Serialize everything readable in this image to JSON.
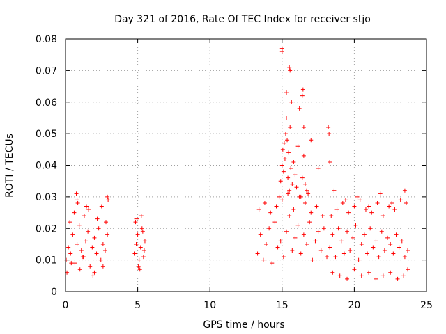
{
  "chart_data": {
    "type": "scatter",
    "title": "Day 321 of 2016, Rate Of TEC Index for receiver stjo",
    "xlabel": "GPS time / hours",
    "ylabel": "ROTI / TECUs",
    "xlim": [
      0,
      25
    ],
    "ylim": [
      0,
      0.08
    ],
    "x_ticks": [
      "0",
      "5",
      "10",
      "15",
      "20",
      "25"
    ],
    "y_ticks": [
      "0",
      "0.01",
      "0.02",
      "0.03",
      "0.04",
      "0.05",
      "0.06",
      "0.07",
      "0.08"
    ],
    "grid": true,
    "marker": "+",
    "color": "#ff0000",
    "series": [
      {
        "x": [
          0.05,
          0.2,
          0.35,
          0.5,
          0.65,
          0.8,
          0.95,
          1.1,
          1.25,
          1.4,
          1.55,
          1.7,
          1.85,
          2.0,
          2.15,
          2.3,
          2.45,
          2.6,
          2.75,
          2.9,
          0.1,
          0.3,
          0.6,
          0.85,
          1.0,
          1.3,
          1.6,
          1.9,
          2.2,
          2.5,
          2.8,
          0.75,
          0.8,
          1.45,
          2.9,
          2.95,
          0.4,
          1.2,
          2.0,
          2.6,
          4.8,
          4.9,
          5.0,
          5.1,
          5.2,
          5.3,
          5.4,
          5.5,
          4.85,
          5.05,
          5.25,
          5.45,
          5.15,
          5.35,
          4.95,
          13.3,
          13.5,
          13.7,
          13.9,
          14.1,
          14.3,
          14.5,
          14.7,
          14.9,
          15.1,
          15.3,
          15.5,
          15.7,
          15.9,
          16.1,
          16.3,
          16.5,
          16.7,
          16.9,
          17.1,
          17.3,
          17.5,
          17.7,
          17.9,
          18.1,
          13.4,
          13.8,
          14.2,
          14.6,
          15.0,
          15.4,
          15.8,
          16.2,
          16.6,
          17.0,
          17.4,
          17.8,
          14.8,
          14.9,
          15.0,
          15.05,
          15.1,
          15.15,
          15.2,
          15.25,
          15.3,
          15.35,
          15.4,
          15.45,
          15.5,
          15.55,
          15.6,
          15.65,
          15.7,
          15.8,
          15.9,
          16.0,
          16.1,
          16.2,
          16.3,
          16.4,
          16.5,
          16.6,
          16.7,
          16.8,
          15.0,
          15.0,
          15.3,
          15.5,
          15.55,
          16.4,
          16.45,
          16.5,
          17.0,
          17.5,
          18.2,
          18.25,
          18.3,
          18.3,
          18.5,
          18.7,
          18.9,
          19.1,
          19.3,
          19.5,
          19.7,
          19.9,
          20.1,
          20.3,
          20.5,
          20.7,
          20.9,
          21.1,
          21.3,
          21.5,
          21.7,
          21.9,
          22.1,
          22.3,
          22.5,
          22.7,
          22.9,
          23.1,
          23.3,
          23.5,
          23.7,
          18.4,
          18.8,
          19.2,
          19.6,
          20.0,
          20.4,
          20.8,
          21.2,
          21.6,
          22.0,
          22.4,
          22.8,
          23.2,
          23.6,
          18.5,
          19.0,
          19.5,
          20.0,
          20.5,
          21.0,
          21.5,
          22.0,
          22.5,
          23.0,
          23.4,
          23.7,
          18.6,
          19.4,
          20.2,
          21.0,
          21.8,
          22.6,
          23.5
        ],
        "y": [
          0.01,
          0.014,
          0.012,
          0.018,
          0.009,
          0.015,
          0.021,
          0.013,
          0.011,
          0.016,
          0.019,
          0.008,
          0.014,
          0.017,
          0.012,
          0.02,
          0.01,
          0.015,
          0.013,
          0.018,
          0.006,
          0.022,
          0.025,
          0.028,
          0.007,
          0.024,
          0.026,
          0.005,
          0.023,
          0.027,
          0.022,
          0.031,
          0.029,
          0.027,
          0.03,
          0.029,
          0.009,
          0.011,
          0.006,
          0.008,
          0.012,
          0.015,
          0.018,
          0.01,
          0.014,
          0.02,
          0.011,
          0.016,
          0.022,
          0.008,
          0.024,
          0.013,
          0.007,
          0.019,
          0.023,
          0.012,
          0.018,
          0.01,
          0.015,
          0.02,
          0.009,
          0.022,
          0.014,
          0.016,
          0.011,
          0.019,
          0.024,
          0.013,
          0.017,
          0.021,
          0.012,
          0.018,
          0.015,
          0.022,
          0.01,
          0.016,
          0.019,
          0.013,
          0.02,
          0.011,
          0.026,
          0.028,
          0.025,
          0.027,
          0.029,
          0.031,
          0.026,
          0.03,
          0.028,
          0.025,
          0.027,
          0.024,
          0.03,
          0.035,
          0.04,
          0.045,
          0.038,
          0.047,
          0.042,
          0.05,
          0.055,
          0.048,
          0.036,
          0.044,
          0.032,
          0.052,
          0.039,
          0.06,
          0.034,
          0.041,
          0.037,
          0.033,
          0.046,
          0.058,
          0.03,
          0.036,
          0.043,
          0.034,
          0.032,
          0.031,
          0.077,
          0.076,
          0.063,
          0.071,
          0.07,
          0.062,
          0.064,
          0.052,
          0.048,
          0.039,
          0.052,
          0.05,
          0.041,
          0.014,
          0.018,
          0.011,
          0.02,
          0.016,
          0.012,
          0.019,
          0.013,
          0.017,
          0.021,
          0.01,
          0.015,
          0.018,
          0.012,
          0.02,
          0.014,
          0.016,
          0.011,
          0.019,
          0.013,
          0.017,
          0.015,
          0.012,
          0.018,
          0.014,
          0.016,
          0.011,
          0.013,
          0.024,
          0.026,
          0.028,
          0.025,
          0.027,
          0.029,
          0.026,
          0.025,
          0.028,
          0.024,
          0.027,
          0.026,
          0.029,
          0.028,
          0.006,
          0.005,
          0.004,
          0.007,
          0.005,
          0.006,
          0.004,
          0.005,
          0.006,
          0.004,
          0.005,
          0.007,
          0.032,
          0.029,
          0.03,
          0.027,
          0.031,
          0.028,
          0.032
        ]
      }
    ]
  }
}
